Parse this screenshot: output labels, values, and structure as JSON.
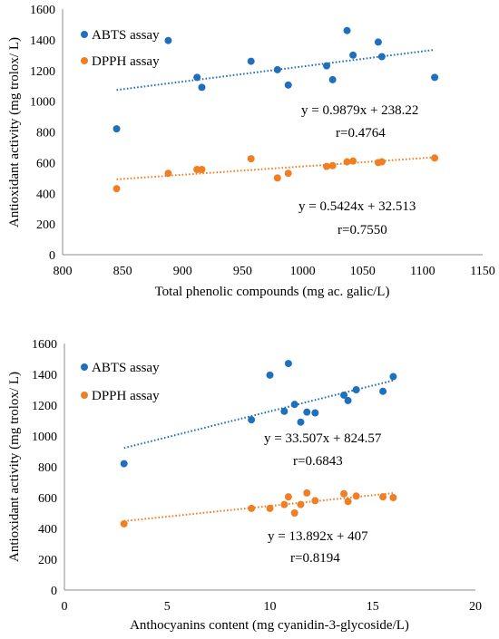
{
  "colors": {
    "abts": "#1f6fbf",
    "dpph": "#f07f23",
    "axis": "#8c8c8c",
    "text": "#000000"
  },
  "chart_data": [
    {
      "type": "scatter",
      "xlabel": "Total phenolic compounds  (mg ac. galic/L)",
      "ylabel": "Antioxidant  activity  (mg trolox/  L)",
      "xlim": [
        800,
        1150
      ],
      "ylim": [
        0,
        1600
      ],
      "x_ticks": [
        "800",
        "850",
        "900",
        "950",
        "1000",
        "1050",
        "1100",
        "1150"
      ],
      "y_ticks": [
        "0",
        "200",
        "400",
        "600",
        "800",
        "1000",
        "1200",
        "1400",
        "1600"
      ],
      "grid": false,
      "legend": "top-left",
      "series": [
        {
          "name": "ABTS assay",
          "color": "#1f6fbf",
          "points": [
            [
              845,
              820
            ],
            [
              888,
              1395
            ],
            [
              912,
              1155
            ],
            [
              916,
              1090
            ],
            [
              957,
              1260
            ],
            [
              979,
              1205
            ],
            [
              988,
              1105
            ],
            [
              1020,
              1230
            ],
            [
              1025,
              1140
            ],
            [
              1037,
              1460
            ],
            [
              1042,
              1300
            ],
            [
              1063,
              1385
            ],
            [
              1066,
              1290
            ],
            [
              1110,
              1155
            ]
          ],
          "trendline": {
            "slope": 0.9879,
            "intercept": 238.22,
            "x_range": [
              845,
              1110
            ]
          },
          "equation": "y = 0.9879x + 238.22",
          "r_text": "r=0.4764"
        },
        {
          "name": "DPPH assay",
          "color": "#f07f23",
          "points": [
            [
              845,
              430
            ],
            [
              888,
              530
            ],
            [
              912,
              555
            ],
            [
              916,
              555
            ],
            [
              957,
              625
            ],
            [
              979,
              500
            ],
            [
              988,
              530
            ],
            [
              1020,
              575
            ],
            [
              1025,
              580
            ],
            [
              1037,
              605
            ],
            [
              1042,
              610
            ],
            [
              1063,
              600
            ],
            [
              1066,
              605
            ],
            [
              1110,
              630
            ]
          ],
          "trendline": {
            "slope": 0.5424,
            "intercept": 32.513,
            "x_range": [
              845,
              1110
            ]
          },
          "equation": "y = 0.5424x + 32.513",
          "r_text": "r=0.7550"
        }
      ]
    },
    {
      "type": "scatter",
      "xlabel": "Anthocyanins  content  (mg  cyanidin-3-glycoside/L)",
      "ylabel": "Antioxidant  activity  (mg trolox/  L)",
      "xlim": [
        0,
        20
      ],
      "ylim": [
        0,
        1600
      ],
      "x_ticks": [
        "0",
        "5",
        "10",
        "15",
        "20"
      ],
      "y_ticks": [
        "0",
        "200",
        "400",
        "600",
        "800",
        "1000",
        "1200",
        "1400",
        "1600"
      ],
      "grid": false,
      "legend": "top-left",
      "series": [
        {
          "name": "ABTS assay",
          "color": "#1f6fbf",
          "points": [
            [
              2.9,
              820
            ],
            [
              9.1,
              1105
            ],
            [
              10.0,
              1395
            ],
            [
              10.7,
              1160
            ],
            [
              10.9,
              1470
            ],
            [
              11.2,
              1205
            ],
            [
              11.5,
              1090
            ],
            [
              11.8,
              1155
            ],
            [
              12.2,
              1150
            ],
            [
              13.6,
              1265
            ],
            [
              13.8,
              1230
            ],
            [
              14.2,
              1300
            ],
            [
              15.5,
              1290
            ],
            [
              16.0,
              1385
            ]
          ],
          "trendline": {
            "slope": 33.507,
            "intercept": 824.57,
            "x_range": [
              2.9,
              16.0
            ]
          },
          "equation": "y = 33.507x + 824.57",
          "r_text": "r=0.6843"
        },
        {
          "name": "DPPH assay",
          "color": "#f07f23",
          "points": [
            [
              2.9,
              430
            ],
            [
              9.1,
              530
            ],
            [
              10.0,
              530
            ],
            [
              10.7,
              555
            ],
            [
              10.9,
              605
            ],
            [
              11.2,
              500
            ],
            [
              11.5,
              555
            ],
            [
              11.8,
              630
            ],
            [
              12.2,
              580
            ],
            [
              13.6,
              625
            ],
            [
              13.8,
              575
            ],
            [
              14.2,
              610
            ],
            [
              15.5,
              605
            ],
            [
              16.0,
              600
            ]
          ],
          "trendline": {
            "slope": 13.892,
            "intercept": 407,
            "x_range": [
              2.9,
              16.0
            ]
          },
          "equation": "y = 13.892x + 407",
          "r_text": "r=0.8194"
        }
      ]
    }
  ]
}
